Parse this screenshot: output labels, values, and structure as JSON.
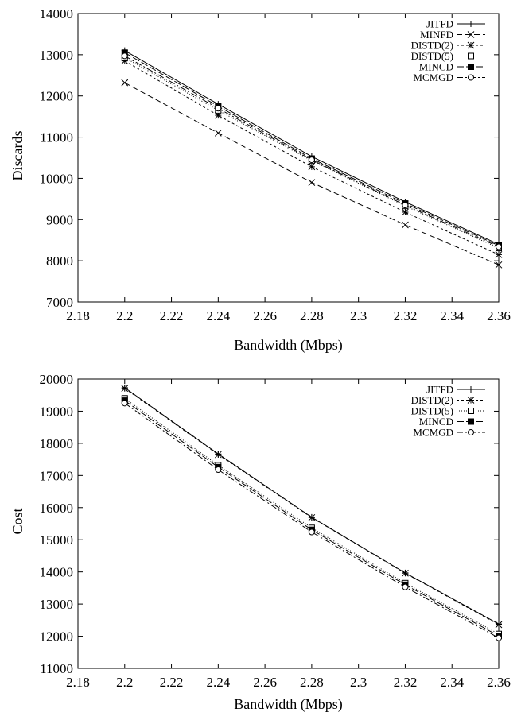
{
  "chart_data": [
    {
      "type": "line",
      "xlabel": "Bandwidth (Mbps)",
      "ylabel": "Discards",
      "xlim": [
        2.18,
        2.36
      ],
      "ylim": [
        7000,
        14000
      ],
      "xticks": [
        "2.18",
        "2.2",
        "2.22",
        "2.24",
        "2.26",
        "2.28",
        "2.3",
        "2.32",
        "2.34",
        "2.36"
      ],
      "yticks": [
        "7000",
        "8000",
        "9000",
        "10000",
        "11000",
        "12000",
        "13000",
        "14000"
      ],
      "legend_position": "top-right",
      "grid": false,
      "x": [
        2.2,
        2.24,
        2.28,
        2.32,
        2.36
      ],
      "series": [
        {
          "name": "JITFD",
          "marker": "plus",
          "dash": "",
          "values": [
            13100,
            11800,
            10530,
            9430,
            8400
          ]
        },
        {
          "name": "MINFD",
          "marker": "x",
          "dash": "7,4",
          "values": [
            12320,
            11100,
            9900,
            8870,
            7900
          ]
        },
        {
          "name": "DISTD(2)",
          "marker": "star",
          "dash": "3,3",
          "values": [
            12850,
            11530,
            10280,
            9180,
            8150
          ]
        },
        {
          "name": "DISTD(5)",
          "marker": "square-open",
          "dash": "1,2",
          "values": [
            12930,
            11650,
            10430,
            9330,
            8310
          ]
        },
        {
          "name": "MINCD",
          "marker": "square-filled",
          "dash": "9,3",
          "values": [
            13050,
            11750,
            10480,
            9390,
            8370
          ]
        },
        {
          "name": "MCMGD",
          "marker": "circle-open",
          "dash": "8,3,2,3",
          "values": [
            12970,
            11700,
            10450,
            9350,
            8340
          ]
        }
      ]
    },
    {
      "type": "line",
      "xlabel": "Bandwidth (Mbps)",
      "ylabel": "Cost",
      "xlim": [
        2.18,
        2.36
      ],
      "ylim": [
        11000,
        20000
      ],
      "xticks": [
        "2.18",
        "2.2",
        "2.22",
        "2.24",
        "2.26",
        "2.28",
        "2.3",
        "2.32",
        "2.34",
        "2.36"
      ],
      "yticks": [
        "11000",
        "12000",
        "13000",
        "14000",
        "15000",
        "16000",
        "17000",
        "18000",
        "19000",
        "20000"
      ],
      "legend_position": "top-right",
      "grid": false,
      "x": [
        2.2,
        2.24,
        2.28,
        2.32,
        2.36
      ],
      "series": [
        {
          "name": "JITFD",
          "marker": "plus",
          "dash": "",
          "values": [
            19730,
            17670,
            15700,
            13970,
            12380
          ]
        },
        {
          "name": "DISTD(2)",
          "marker": "star",
          "dash": "3,3",
          "values": [
            19710,
            17650,
            15690,
            13960,
            12360
          ]
        },
        {
          "name": "DISTD(5)",
          "marker": "square-open",
          "dash": "1,2",
          "values": [
            19400,
            17320,
            15370,
            13650,
            12070
          ]
        },
        {
          "name": "MINCD",
          "marker": "square-filled",
          "dash": "9,3",
          "values": [
            19330,
            17260,
            15310,
            13600,
            12010
          ]
        },
        {
          "name": "MCMGD",
          "marker": "circle-open",
          "dash": "8,3,2,3",
          "values": [
            19250,
            17180,
            15240,
            13530,
            11950
          ]
        }
      ]
    }
  ]
}
